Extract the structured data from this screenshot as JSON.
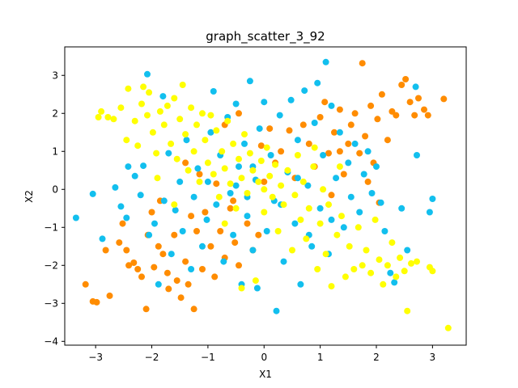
{
  "chart_data": {
    "type": "scatter",
    "title": "graph_scatter_3_92",
    "xlabel": "X1",
    "ylabel": "X2",
    "xlim": [
      -3.55,
      3.6
    ],
    "ylim": [
      -4.1,
      3.75
    ],
    "xticks": [
      -3,
      -2,
      -1,
      0,
      1,
      2,
      3
    ],
    "xtick_labels": [
      "−3",
      "−2",
      "−1",
      "0",
      "1",
      "2",
      "3"
    ],
    "yticks": [
      -4,
      -3,
      -2,
      -1,
      0,
      1,
      2,
      3
    ],
    "ytick_labels": [
      "−4",
      "−3",
      "−2",
      "−1",
      "0",
      "1",
      "2",
      "3"
    ],
    "grid": false,
    "legend": "none",
    "marker_size": 4,
    "draw_order": [
      "orange",
      "blue",
      "yellow"
    ],
    "series": [
      {
        "color": "#ff8c00",
        "points": [
          [
            -3.18,
            -2.5
          ],
          [
            -3.05,
            -2.95
          ],
          [
            -2.98,
            -2.97
          ],
          [
            -2.82,
            -1.6
          ],
          [
            -2.75,
            -2.8
          ],
          [
            -2.58,
            -1.4
          ],
          [
            -2.52,
            -0.9
          ],
          [
            -2.45,
            -1.6
          ],
          [
            -2.41,
            -2.0
          ],
          [
            -2.32,
            -1.93
          ],
          [
            -2.25,
            -2.1
          ],
          [
            -2.18,
            -2.3
          ],
          [
            -2.1,
            -3.15
          ],
          [
            -2.07,
            -1.2
          ],
          [
            -1.96,
            -2.05
          ],
          [
            -1.88,
            -1.5
          ],
          [
            -1.8,
            -1.7
          ],
          [
            -1.72,
            -2.2
          ],
          [
            -1.7,
            -2.62
          ],
          [
            -1.6,
            -1.2
          ],
          [
            -1.55,
            -2.4
          ],
          [
            -1.48,
            -2.85
          ],
          [
            -1.4,
            -1.9
          ],
          [
            -1.35,
            -2.5
          ],
          [
            -1.25,
            -3.15
          ],
          [
            -1.2,
            -1.1
          ],
          [
            -1.1,
            -2.1
          ],
          [
            -1.05,
            -0.6
          ],
          [
            -0.95,
            -1.5
          ],
          [
            -0.88,
            -2.3
          ],
          [
            -0.78,
            -1.1
          ],
          [
            -0.7,
            -1.8
          ],
          [
            -0.6,
            -0.5
          ],
          [
            -0.52,
            -1.4
          ],
          [
            -0.45,
            -2.0
          ],
          [
            -0.3,
            -0.9
          ],
          [
            -0.2,
            -1.6
          ],
          [
            -0.1,
            -1.2
          ],
          [
            -0.05,
            1.15
          ],
          [
            0.1,
            1.6
          ],
          [
            0.2,
            0.7
          ],
          [
            0.3,
            1.0
          ],
          [
            0.45,
            1.55
          ],
          [
            0.55,
            0.3
          ],
          [
            0.7,
            1.7
          ],
          [
            0.8,
            1.2
          ],
          [
            0.9,
            0.6
          ],
          [
            1.0,
            1.9
          ],
          [
            1.08,
            2.3
          ],
          [
            1.15,
            0.95
          ],
          [
            1.25,
            1.5
          ],
          [
            1.35,
            2.1
          ],
          [
            1.42,
            0.4
          ],
          [
            1.5,
            1.2
          ],
          [
            1.55,
            1.7
          ],
          [
            1.62,
            2.0
          ],
          [
            1.7,
            0.95
          ],
          [
            1.75,
            3.32
          ],
          [
            1.8,
            1.4
          ],
          [
            1.9,
            2.2
          ],
          [
            1.95,
            0.7
          ],
          [
            2.02,
            1.85
          ],
          [
            2.1,
            2.5
          ],
          [
            2.2,
            1.3
          ],
          [
            2.28,
            2.05
          ],
          [
            2.35,
            1.95
          ],
          [
            2.45,
            2.75
          ],
          [
            2.52,
            2.9
          ],
          [
            2.6,
            2.3
          ],
          [
            2.68,
            1.95
          ],
          [
            2.75,
            2.4
          ],
          [
            2.85,
            2.1
          ],
          [
            2.92,
            1.95
          ],
          [
            3.2,
            2.38
          ],
          [
            1.85,
            0.2
          ],
          [
            2.05,
            -0.35
          ],
          [
            -1.4,
            0.7
          ],
          [
            -1.15,
            0.4
          ],
          [
            -0.85,
            0.15
          ],
          [
            -0.7,
            1.7
          ],
          [
            -0.45,
            2.0
          ],
          [
            0.0,
            0.2
          ],
          [
            1.2,
            -0.15
          ],
          [
            1.35,
            1.0
          ],
          [
            -2.0,
            -0.6
          ],
          [
            -1.85,
            -0.3
          ],
          [
            -1.3,
            -0.7
          ],
          [
            -0.55,
            -0.3
          ]
        ]
      },
      {
        "color": "#12bfee",
        "points": [
          [
            -3.35,
            -0.75
          ],
          [
            -3.05,
            -0.12
          ],
          [
            -2.88,
            -1.3
          ],
          [
            -2.65,
            0.05
          ],
          [
            -2.55,
            -0.45
          ],
          [
            -2.45,
            -0.75
          ],
          [
            -2.42,
            0.6
          ],
          [
            -2.3,
            0.35
          ],
          [
            -2.2,
            -0.15
          ],
          [
            -2.15,
            0.62
          ],
          [
            -2.08,
            3.03
          ],
          [
            -2.05,
            -1.2
          ],
          [
            -1.95,
            -0.9
          ],
          [
            -1.88,
            -2.5
          ],
          [
            -1.8,
            2.45
          ],
          [
            -1.78,
            -0.3
          ],
          [
            -1.7,
            0.95
          ],
          [
            -1.65,
            -1.7
          ],
          [
            -1.58,
            -0.55
          ],
          [
            -1.5,
            0.2
          ],
          [
            -1.45,
            -1.1
          ],
          [
            -1.38,
            1.3
          ],
          [
            -1.3,
            -2.1
          ],
          [
            -1.25,
            -0.2
          ],
          [
            -1.18,
            0.55
          ],
          [
            -1.1,
            -1.5
          ],
          [
            -1.02,
            -0.8
          ],
          [
            -0.95,
            1.5
          ],
          [
            -0.9,
            2.58
          ],
          [
            -0.85,
            -0.4
          ],
          [
            -0.78,
            0.9
          ],
          [
            -0.72,
            -1.9
          ],
          [
            -0.65,
            1.9
          ],
          [
            -0.6,
            -0.1
          ],
          [
            -0.55,
            -1.2
          ],
          [
            -0.5,
            2.25
          ],
          [
            -0.45,
            0.6
          ],
          [
            -0.4,
            -2.5
          ],
          [
            -0.35,
            1.2
          ],
          [
            -0.3,
            -0.7
          ],
          [
            -0.25,
            2.85
          ],
          [
            -0.2,
            -1.6
          ],
          [
            -0.15,
            0.25
          ],
          [
            -0.12,
            -2.6
          ],
          [
            -0.08,
            1.6
          ],
          [
            0.0,
            2.3
          ],
          [
            0.05,
            -1.1
          ],
          [
            0.12,
            0.9
          ],
          [
            0.18,
            -0.3
          ],
          [
            0.22,
            -3.2
          ],
          [
            0.28,
            1.95
          ],
          [
            0.35,
            -1.9
          ],
          [
            0.42,
            0.45
          ],
          [
            0.48,
            2.35
          ],
          [
            0.55,
            -0.9
          ],
          [
            0.6,
            1.3
          ],
          [
            0.65,
            -2.5
          ],
          [
            0.72,
            2.6
          ],
          [
            0.78,
            0.1
          ],
          [
            0.85,
            -1.5
          ],
          [
            0.9,
            1.75
          ],
          [
            0.95,
            2.8
          ],
          [
            1.0,
            -0.5
          ],
          [
            1.05,
            0.9
          ],
          [
            1.1,
            3.35
          ],
          [
            1.15,
            -1.7
          ],
          [
            1.2,
            2.2
          ],
          [
            1.28,
            0.3
          ],
          [
            1.35,
            1.5
          ],
          [
            1.42,
            -1.0
          ],
          [
            1.5,
            0.7
          ],
          [
            1.55,
            -0.2
          ],
          [
            1.62,
            1.2
          ],
          [
            1.7,
            -0.6
          ],
          [
            1.78,
            0.4
          ],
          [
            1.85,
            1.0
          ],
          [
            1.92,
            -0.1
          ],
          [
            2.0,
            0.6
          ],
          [
            2.08,
            -0.35
          ],
          [
            2.15,
            -1.1
          ],
          [
            2.25,
            -2.2
          ],
          [
            2.32,
            -2.45
          ],
          [
            2.45,
            -0.5
          ],
          [
            2.55,
            -1.6
          ],
          [
            2.7,
            2.7
          ],
          [
            2.72,
            0.9
          ],
          [
            2.95,
            -0.6
          ],
          [
            3.0,
            -0.25
          ],
          [
            -0.5,
            0.1
          ],
          [
            -0.2,
            0.6
          ],
          [
            0.3,
            -0.4
          ],
          [
            0.6,
            0.3
          ],
          [
            -1.0,
            0.2
          ],
          [
            1.2,
            -0.8
          ],
          [
            -0.3,
            -0.2
          ],
          [
            0.8,
            -1.2
          ]
        ]
      },
      {
        "color": "#ffff00",
        "points": [
          [
            -2.95,
            1.9
          ],
          [
            -2.9,
            2.05
          ],
          [
            -2.78,
            1.9
          ],
          [
            -2.68,
            1.85
          ],
          [
            -2.55,
            2.15
          ],
          [
            -2.45,
            1.3
          ],
          [
            -2.42,
            2.65
          ],
          [
            -2.3,
            1.8
          ],
          [
            -2.25,
            1.15
          ],
          [
            -2.18,
            2.25
          ],
          [
            -2.15,
            2.7
          ],
          [
            -2.08,
            1.95
          ],
          [
            -2.05,
            2.55
          ],
          [
            -1.98,
            1.5
          ],
          [
            -1.92,
            0.95
          ],
          [
            -1.85,
            2.05
          ],
          [
            -1.78,
            1.7
          ],
          [
            -1.72,
            2.2
          ],
          [
            -1.66,
            1.2
          ],
          [
            -1.6,
            2.4
          ],
          [
            -1.55,
            0.8
          ],
          [
            -1.5,
            1.85
          ],
          [
            -1.45,
            2.75
          ],
          [
            -1.4,
            1.45
          ],
          [
            -1.35,
            0.5
          ],
          [
            -1.3,
            2.15
          ],
          [
            -1.25,
            1.0
          ],
          [
            -1.2,
            1.7
          ],
          [
            -1.15,
            0.2
          ],
          [
            -1.1,
            2.0
          ],
          [
            -1.05,
            1.3
          ],
          [
            -1.0,
            0.7
          ],
          [
            -0.95,
            1.95
          ],
          [
            -0.9,
            0.4
          ],
          [
            -0.85,
            1.55
          ],
          [
            -0.8,
            -0.2
          ],
          [
            -0.75,
            1.0
          ],
          [
            -0.7,
            0.55
          ],
          [
            -0.65,
            1.8
          ],
          [
            -0.6,
            0.15
          ],
          [
            -0.55,
            1.2
          ],
          [
            -0.5,
            -0.5
          ],
          [
            -0.45,
            0.8
          ],
          [
            -0.4,
            0.3
          ],
          [
            -0.35,
            1.45
          ],
          [
            -0.3,
            -0.1
          ],
          [
            -0.25,
            0.95
          ],
          [
            -0.2,
            0.5
          ],
          [
            -0.15,
            -2.4
          ],
          [
            -0.1,
            0.2
          ],
          [
            -0.05,
            0.75
          ],
          [
            0.0,
            -0.6
          ],
          [
            0.05,
            1.1
          ],
          [
            0.1,
            0.35
          ],
          [
            0.15,
            -0.2
          ],
          [
            0.2,
            0.65
          ],
          [
            0.25,
            -1.1
          ],
          [
            0.3,
            0.1
          ],
          [
            0.35,
            -0.4
          ],
          [
            0.42,
            0.5
          ],
          [
            0.5,
            -1.6
          ],
          [
            0.55,
            -0.15
          ],
          [
            0.6,
            0.9
          ],
          [
            0.65,
            -0.8
          ],
          [
            0.7,
            0.2
          ],
          [
            0.75,
            -1.3
          ],
          [
            0.8,
            -0.5
          ],
          [
            0.88,
            0.6
          ],
          [
            0.95,
            -2.1
          ],
          [
            1.0,
            -0.9
          ],
          [
            1.05,
            0.0
          ],
          [
            1.1,
            -1.7
          ],
          [
            1.15,
            -0.4
          ],
          [
            1.2,
            -2.55
          ],
          [
            1.3,
            -1.2
          ],
          [
            1.38,
            -0.7
          ],
          [
            1.45,
            -2.3
          ],
          [
            1.52,
            -1.5
          ],
          [
            1.6,
            -2.1
          ],
          [
            1.68,
            -1.0
          ],
          [
            1.75,
            -2.0
          ],
          [
            1.82,
            -1.6
          ],
          [
            1.9,
            -2.2
          ],
          [
            1.98,
            -0.8
          ],
          [
            2.05,
            -1.85
          ],
          [
            2.12,
            -2.5
          ],
          [
            2.2,
            -2.0
          ],
          [
            2.28,
            -1.4
          ],
          [
            2.35,
            -2.3
          ],
          [
            2.42,
            -1.8
          ],
          [
            2.5,
            -2.15
          ],
          [
            2.55,
            -3.2
          ],
          [
            2.62,
            -1.95
          ],
          [
            2.72,
            -1.9
          ],
          [
            2.95,
            -2.05
          ],
          [
            3.0,
            -2.15
          ],
          [
            3.28,
            -3.65
          ],
          [
            -0.4,
            -2.6
          ],
          [
            0.9,
            1.1
          ],
          [
            1.35,
            0.6
          ],
          [
            -1.6,
            -0.4
          ],
          [
            -1.9,
            0.3
          ],
          [
            0.0,
            0.0
          ],
          [
            -0.7,
            -0.9
          ]
        ]
      }
    ]
  }
}
